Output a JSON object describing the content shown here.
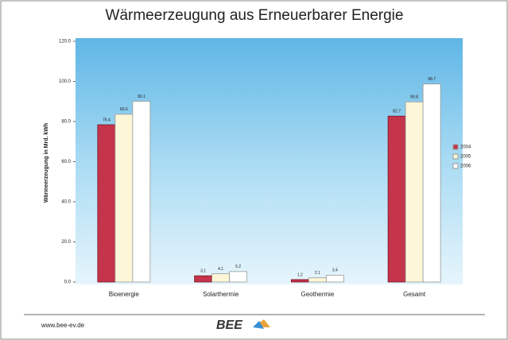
{
  "chart_data": {
    "type": "bar",
    "title": "Wärmeerzeugung aus Erneuerbarer Energie",
    "y_label": "Wärmeerzeugung in Mrd. kWh",
    "categories": [
      "Bioenergie",
      "Solarthermie",
      "Geothermie",
      "Gesamt"
    ],
    "series": [
      {
        "name": "2004",
        "color": "#c4344a",
        "values": [
          78.4,
          3.1,
          1.2,
          82.7
        ]
      },
      {
        "name": "2005",
        "color": "#fdf7d8",
        "values": [
          83.6,
          4.1,
          2.1,
          89.8
        ]
      },
      {
        "name": "2006",
        "color": "#ffffff",
        "values": [
          90.1,
          5.2,
          3.4,
          98.7
        ]
      }
    ],
    "ylim": [
      0,
      120
    ],
    "yticks": [
      {
        "value": 0,
        "label": "0.0"
      },
      {
        "value": 20,
        "label": "20.0"
      },
      {
        "value": 40,
        "label": "40.0"
      },
      {
        "value": 60,
        "label": "60.0"
      },
      {
        "value": 80,
        "label": "80.0"
      },
      {
        "value": 100,
        "label": "100.0"
      },
      {
        "value": 120,
        "label": "120.0"
      }
    ],
    "grid": false,
    "legend": "right"
  },
  "footer": {
    "url": "www.bee-ev.de",
    "logo": "BEE"
  }
}
